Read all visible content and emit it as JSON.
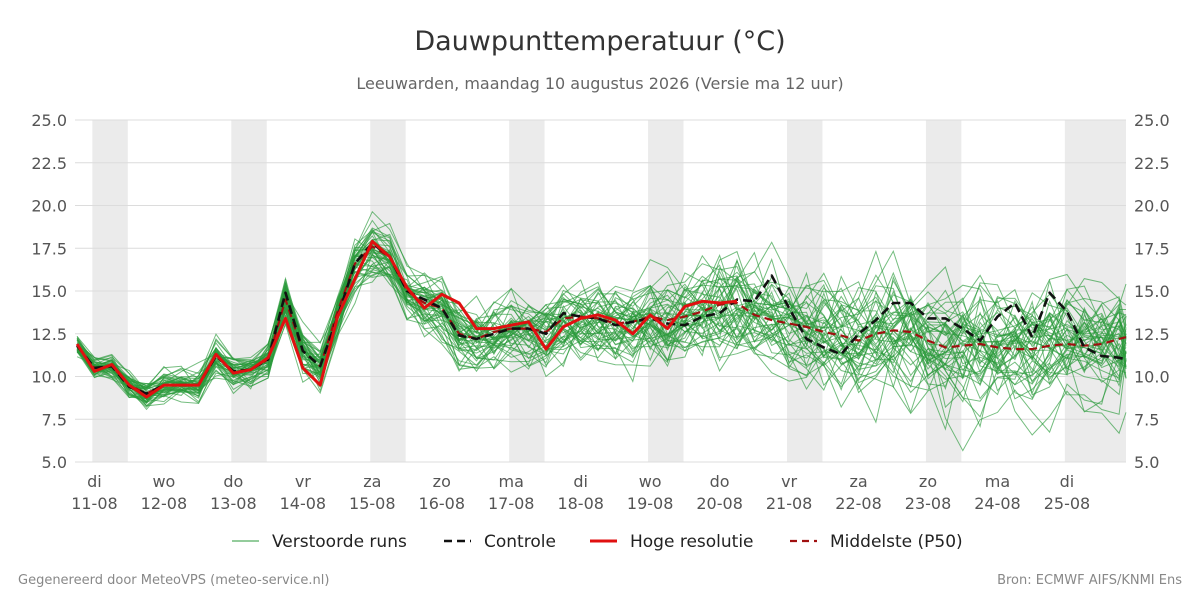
{
  "colors": {
    "ensemble": "#2a9a3a",
    "control": "#111111",
    "high_res": "#e01010",
    "median": "#a01010",
    "weekend_band": "#ebebeb",
    "grid": "#dcdcdc"
  },
  "footer": {
    "left": "Gegenereerd door MeteoVPS (meteo-service.nl)",
    "right": "Bron: ECMWF AIFS/KNMI Ens"
  },
  "chart_data": {
    "type": "line",
    "title": "Dauwpunttemperatuur (°C)",
    "subtitle": "Leeuwarden, maandag 10 augustus 2026 (Versie ma 12 uur)",
    "ylim": [
      5,
      25
    ],
    "yticks": [
      "5.0",
      "7.5",
      "10.0",
      "12.5",
      "15.0",
      "17.5",
      "20.0",
      "22.5",
      "25.0"
    ],
    "grid": true,
    "right_axis": true,
    "legend_position": "bottom",
    "x_range_days": [
      10.97,
      26.1
    ],
    "x_days": [
      11,
      11.25,
      11.5,
      11.75,
      12,
      12.25,
      12.5,
      12.75,
      13,
      13.25,
      13.5,
      13.75,
      14,
      14.25,
      14.5,
      14.75,
      15,
      15.25,
      15.5,
      15.75,
      16,
      16.25,
      16.5,
      16.75,
      17,
      17.25,
      17.5,
      17.75,
      18,
      18.25,
      18.5,
      18.75,
      19,
      19.25,
      19.5,
      19.75,
      20,
      20.25,
      20.5,
      20.75,
      21,
      21.25,
      21.5,
      21.75,
      22,
      22.25,
      22.5,
      22.75,
      23,
      23.25,
      23.5,
      23.75,
      24,
      24.25,
      24.5,
      24.75,
      25,
      25.25,
      25.5,
      25.75,
      26,
      26.1
    ],
    "x_ticks": [
      {
        "day": 11.25,
        "weekday": "di",
        "date": "11-08"
      },
      {
        "day": 12.25,
        "weekday": "wo",
        "date": "12-08"
      },
      {
        "day": 13.25,
        "weekday": "do",
        "date": "13-08"
      },
      {
        "day": 14.25,
        "weekday": "vr",
        "date": "14-08"
      },
      {
        "day": 15.25,
        "weekday": "za",
        "date": "15-08"
      },
      {
        "day": 16.25,
        "weekday": "zo",
        "date": "16-08"
      },
      {
        "day": 17.25,
        "weekday": "ma",
        "date": "17-08"
      },
      {
        "day": 18.25,
        "weekday": "di",
        "date": "18-08"
      },
      {
        "day": 19.25,
        "weekday": "wo",
        "date": "19-08"
      },
      {
        "day": 20.25,
        "weekday": "do",
        "date": "20-08"
      },
      {
        "day": 21.25,
        "weekday": "vr",
        "date": "21-08"
      },
      {
        "day": 22.25,
        "weekday": "za",
        "date": "22-08"
      },
      {
        "day": 23.25,
        "weekday": "zo",
        "date": "23-08"
      },
      {
        "day": 24.25,
        "weekday": "ma",
        "date": "24-08"
      },
      {
        "day": 25.25,
        "weekday": "di",
        "date": "25-08"
      }
    ],
    "shaded_days": [
      [
        11.22,
        11.73
      ],
      [
        13.22,
        13.73
      ],
      [
        15.22,
        15.73
      ],
      [
        17.22,
        17.73
      ],
      [
        19.22,
        19.73
      ],
      [
        21.22,
        21.73
      ],
      [
        23.22,
        23.73
      ],
      [
        25.22,
        26.1
      ]
    ],
    "legend": [
      {
        "label": "Verstoorde runs",
        "style": "ensemble"
      },
      {
        "label": "Controle",
        "style": "control"
      },
      {
        "label": "Hoge resolutie",
        "style": "high_res"
      },
      {
        "label": "Middelste (P50)",
        "style": "median"
      }
    ],
    "series": [
      {
        "name": "Controle",
        "x": [
          11.0,
          11.25,
          11.5,
          11.75,
          12.0,
          12.25,
          12.5,
          12.75,
          13.0,
          13.25,
          13.5,
          13.75,
          14.0,
          14.25,
          14.5,
          14.75,
          15.0,
          15.25,
          15.5,
          15.75,
          16.0,
          16.25,
          16.5,
          16.75,
          17.0,
          17.25,
          17.5,
          17.75,
          18.0,
          18.25,
          18.5,
          18.75,
          19.0,
          19.25,
          19.5,
          19.75,
          20.0,
          20.25,
          20.5,
          20.75,
          21.0,
          21.25,
          21.5,
          21.75,
          22.0,
          22.25,
          22.5,
          22.75,
          23.0,
          23.25,
          23.5,
          23.75,
          24.0,
          24.25,
          24.5,
          24.75,
          25.0,
          25.25,
          25.5,
          25.75,
          26.0,
          26.1
        ],
        "y": [
          11.8,
          10.5,
          10.6,
          9.4,
          9.0,
          9.5,
          9.5,
          9.5,
          11.2,
          10.3,
          10.4,
          11.0,
          14.9,
          11.5,
          10.6,
          13.5,
          16.6,
          17.8,
          17.0,
          15.0,
          14.5,
          14.0,
          12.4,
          12.2,
          12.5,
          12.8,
          12.8,
          12.5,
          13.7,
          13.5,
          13.4,
          13.0,
          13.2,
          13.4,
          13.1,
          13.0,
          13.5,
          13.7,
          14.5,
          14.4,
          15.9,
          14.0,
          12.2,
          11.7,
          11.3,
          12.5,
          13.3,
          14.3,
          14.3,
          13.4,
          13.4,
          12.8,
          12.1,
          13.5,
          14.3,
          12.3,
          14.9,
          13.8,
          11.7,
          11.2,
          11.1,
          11.0
        ]
      },
      {
        "name": "Hoge resolutie",
        "x": [
          11.0,
          11.25,
          11.5,
          11.75,
          12.0,
          12.25,
          12.5,
          12.75,
          13.0,
          13.25,
          13.5,
          13.75,
          14.0,
          14.25,
          14.5,
          14.75,
          15.0,
          15.25,
          15.5,
          15.75,
          16.0,
          16.25,
          16.5,
          16.75,
          17.0,
          17.25,
          17.5,
          17.75,
          18.0,
          18.25,
          18.5,
          18.75,
          19.0,
          19.25,
          19.5,
          19.75,
          20.0,
          20.25,
          20.5
        ],
        "y": [
          11.9,
          10.3,
          10.7,
          9.5,
          8.8,
          9.5,
          9.5,
          9.5,
          11.3,
          10.2,
          10.4,
          11.1,
          13.4,
          10.5,
          9.5,
          13.5,
          15.7,
          17.9,
          17.0,
          15.2,
          14.0,
          14.8,
          14.3,
          12.8,
          12.8,
          13.0,
          13.2,
          11.6,
          12.9,
          13.4,
          13.6,
          13.3,
          12.5,
          13.6,
          12.8,
          14.1,
          14.4,
          14.3,
          14.4
        ]
      },
      {
        "name": "Middelste (P50)",
        "x": [
          11.0,
          11.25,
          11.5,
          11.75,
          12.0,
          12.25,
          12.5,
          12.75,
          13.0,
          13.25,
          13.5,
          13.75,
          14.0,
          14.25,
          14.5,
          14.75,
          15.0,
          15.25,
          15.5,
          15.75,
          16.0,
          16.25,
          16.5,
          16.75,
          17.0,
          17.25,
          17.5,
          17.75,
          18.0,
          18.25,
          18.5,
          18.75,
          19.0,
          19.25,
          19.5,
          19.75,
          20.0,
          20.25,
          20.5,
          20.75,
          21.0,
          21.25,
          21.5,
          21.75,
          22.0,
          22.25,
          22.5,
          22.75,
          23.0,
          23.25,
          23.5,
          23.75,
          24.0,
          24.25,
          24.5,
          24.75,
          25.0,
          25.25,
          25.5,
          25.75,
          26.0,
          26.1
        ],
        "y": [
          11.8,
          10.5,
          10.6,
          9.5,
          9.0,
          9.5,
          9.5,
          9.5,
          11.2,
          10.3,
          10.4,
          11.0,
          14.5,
          11.5,
          10.6,
          13.8,
          16.6,
          17.6,
          17.0,
          15.0,
          14.3,
          14.0,
          12.5,
          12.2,
          12.6,
          12.8,
          12.8,
          12.6,
          13.4,
          13.5,
          13.4,
          13.1,
          13.2,
          13.5,
          13.3,
          13.5,
          13.8,
          14.2,
          14.3,
          13.6,
          13.3,
          13.1,
          12.9,
          12.6,
          12.4,
          12.1,
          12.5,
          12.7,
          12.6,
          12.1,
          11.7,
          11.8,
          11.9,
          11.7,
          11.6,
          11.6,
          11.8,
          11.9,
          11.8,
          11.9,
          12.2,
          12.3
        ]
      }
    ],
    "ensemble": {
      "name": "Verstoorde runs",
      "count": 50,
      "range_days": [
        11.0,
        26.1
      ]
    }
  }
}
